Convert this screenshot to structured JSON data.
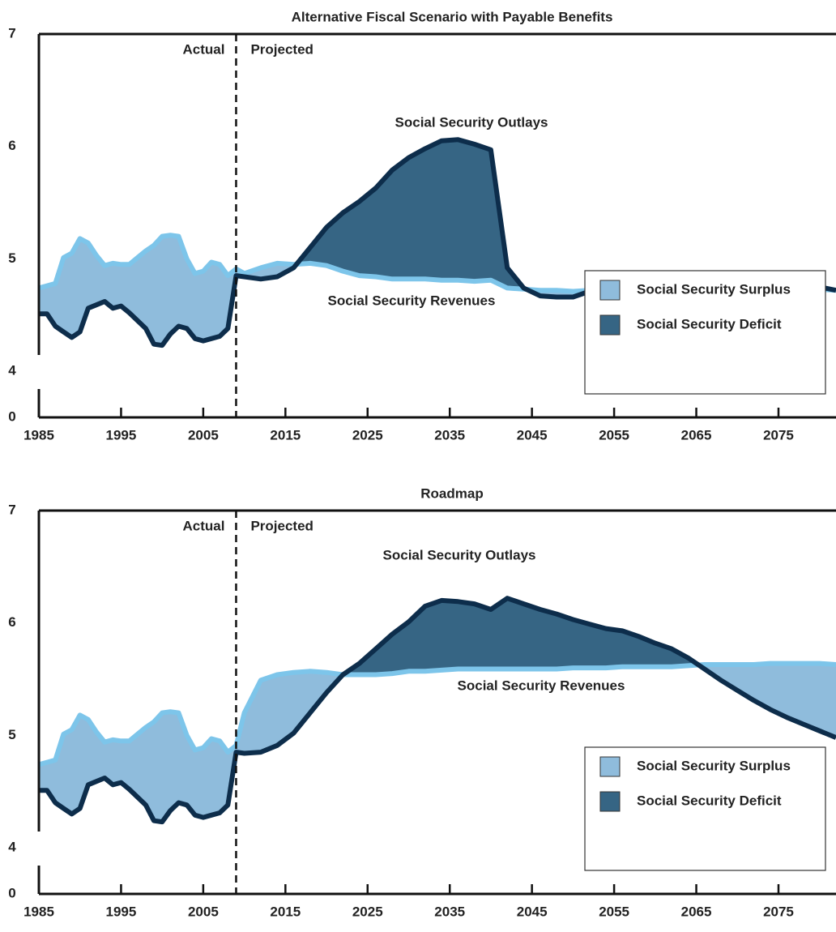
{
  "chart_data": [
    {
      "type": "area-difference",
      "title": "Alternative Fiscal Scenario with Payable Benefits",
      "x": [
        1985,
        1986,
        1987,
        1988,
        1989,
        1990,
        1991,
        1992,
        1993,
        1994,
        1995,
        1996,
        1997,
        1998,
        1999,
        2000,
        2001,
        2002,
        2003,
        2004,
        2005,
        2006,
        2007,
        2008,
        2009,
        2010,
        2012,
        2014,
        2016,
        2018,
        2020,
        2022,
        2024,
        2026,
        2028,
        2030,
        2032,
        2034,
        2036,
        2038,
        2040,
        2042,
        2044,
        2046,
        2048,
        2050,
        2052,
        2054,
        2056,
        2058,
        2060,
        2062,
        2064,
        2066,
        2068,
        2070,
        2072,
        2074,
        2076,
        2078,
        2080,
        2082
      ],
      "series": [
        {
          "name": "Social Security Outlays",
          "color": "#0d2d4b",
          "values": [
            4.51,
            4.51,
            4.4,
            4.35,
            4.3,
            4.35,
            4.56,
            4.59,
            4.62,
            4.56,
            4.58,
            4.52,
            4.45,
            4.38,
            4.24,
            4.23,
            4.33,
            4.4,
            4.38,
            4.29,
            4.27,
            4.29,
            4.31,
            4.38,
            4.85,
            4.84,
            4.82,
            4.84,
            4.92,
            5.1,
            5.28,
            5.41,
            5.51,
            5.63,
            5.79,
            5.9,
            5.98,
            6.05,
            6.06,
            6.02,
            5.97,
            4.92,
            4.74,
            4.67,
            4.66,
            4.66,
            4.71,
            4.73,
            4.72,
            4.74,
            4.73,
            4.71,
            4.69,
            4.71,
            4.72,
            4.71,
            4.72,
            4.72,
            4.73,
            4.72,
            4.75,
            4.72
          ]
        },
        {
          "name": "Social Security Revenues",
          "color": "#7dc5ea",
          "values": [
            4.74,
            4.76,
            4.78,
            5.01,
            5.05,
            5.18,
            5.14,
            5.03,
            4.94,
            4.96,
            4.95,
            4.95,
            5.01,
            5.07,
            5.12,
            5.2,
            5.21,
            5.2,
            5.0,
            4.87,
            4.89,
            4.97,
            4.95,
            4.85,
            4.91,
            4.87,
            4.92,
            4.96,
            4.95,
            4.96,
            4.94,
            4.89,
            4.85,
            4.84,
            4.82,
            4.82,
            4.82,
            4.81,
            4.81,
            4.8,
            4.81,
            4.74,
            4.73,
            4.72,
            4.72,
            4.71,
            4.72,
            4.72,
            4.72,
            4.71,
            4.71,
            4.7,
            4.7,
            4.71,
            4.71,
            4.71,
            4.7,
            4.71,
            4.72,
            4.72,
            4.73,
            4.72
          ]
        }
      ],
      "legend_entries": [
        {
          "name": "Social Security Surplus",
          "color": "#8fbcdc"
        },
        {
          "name": "Social Security Deficit",
          "color": "#366584"
        }
      ],
      "legend": "lower right",
      "split_x": 2009,
      "annotations": {
        "actual": "Actual",
        "projected": "Projected"
      },
      "xlim": [
        1985,
        2082
      ],
      "xticks": [
        1985,
        1995,
        2005,
        2015,
        2025,
        2035,
        2045,
        2055,
        2065,
        2075
      ],
      "ylim": [
        0,
        7
      ],
      "y_break": [
        0,
        4
      ],
      "yticks": [
        0,
        4,
        5,
        6,
        7
      ],
      "grid": false
    },
    {
      "type": "area-difference",
      "title": "Roadmap",
      "x": [
        1985,
        1986,
        1987,
        1988,
        1989,
        1990,
        1991,
        1992,
        1993,
        1994,
        1995,
        1996,
        1997,
        1998,
        1999,
        2000,
        2001,
        2002,
        2003,
        2004,
        2005,
        2006,
        2007,
        2008,
        2009,
        2010,
        2012,
        2014,
        2016,
        2018,
        2020,
        2022,
        2024,
        2026,
        2028,
        2030,
        2032,
        2034,
        2036,
        2038,
        2040,
        2042,
        2044,
        2046,
        2048,
        2050,
        2052,
        2054,
        2056,
        2058,
        2060,
        2062,
        2064,
        2066,
        2068,
        2070,
        2072,
        2074,
        2076,
        2078,
        2080,
        2082
      ],
      "series": [
        {
          "name": "Social Security Outlays",
          "color": "#0d2d4b",
          "values": [
            4.51,
            4.51,
            4.4,
            4.35,
            4.3,
            4.35,
            4.56,
            4.59,
            4.62,
            4.56,
            4.58,
            4.52,
            4.45,
            4.38,
            4.24,
            4.23,
            4.33,
            4.4,
            4.38,
            4.29,
            4.27,
            4.29,
            4.31,
            4.38,
            4.85,
            4.84,
            4.85,
            4.91,
            5.02,
            5.2,
            5.38,
            5.54,
            5.64,
            5.77,
            5.9,
            6.01,
            6.15,
            6.2,
            6.19,
            6.17,
            6.12,
            6.22,
            6.17,
            6.12,
            6.08,
            6.03,
            5.99,
            5.95,
            5.93,
            5.88,
            5.82,
            5.77,
            5.69,
            5.59,
            5.49,
            5.4,
            5.31,
            5.23,
            5.16,
            5.1,
            5.04,
            4.98
          ]
        },
        {
          "name": "Social Security Revenues",
          "color": "#7dc5ea",
          "values": [
            4.74,
            4.76,
            4.78,
            5.01,
            5.05,
            5.18,
            5.14,
            5.03,
            4.94,
            4.96,
            4.95,
            4.95,
            5.01,
            5.07,
            5.12,
            5.2,
            5.21,
            5.2,
            5.0,
            4.87,
            4.89,
            4.97,
            4.95,
            4.85,
            4.91,
            5.2,
            5.49,
            5.54,
            5.56,
            5.57,
            5.56,
            5.54,
            5.54,
            5.54,
            5.55,
            5.57,
            5.57,
            5.58,
            5.59,
            5.59,
            5.59,
            5.59,
            5.59,
            5.59,
            5.59,
            5.6,
            5.6,
            5.6,
            5.61,
            5.61,
            5.61,
            5.61,
            5.62,
            5.63,
            5.63,
            5.63,
            5.63,
            5.64,
            5.64,
            5.64,
            5.64,
            5.63
          ]
        }
      ],
      "legend_entries": [
        {
          "name": "Social Security Surplus",
          "color": "#8fbcdc"
        },
        {
          "name": "Social Security Deficit",
          "color": "#366584"
        }
      ],
      "legend": "lower right",
      "split_x": 2009,
      "annotations": {
        "actual": "Actual",
        "projected": "Projected"
      },
      "xlim": [
        1985,
        2082
      ],
      "xticks": [
        1985,
        1995,
        2005,
        2015,
        2025,
        2035,
        2045,
        2055,
        2065,
        2075
      ],
      "ylim": [
        0,
        7
      ],
      "y_break": [
        0,
        4
      ],
      "yticks": [
        0,
        4,
        5,
        6,
        7
      ],
      "grid": false
    }
  ]
}
